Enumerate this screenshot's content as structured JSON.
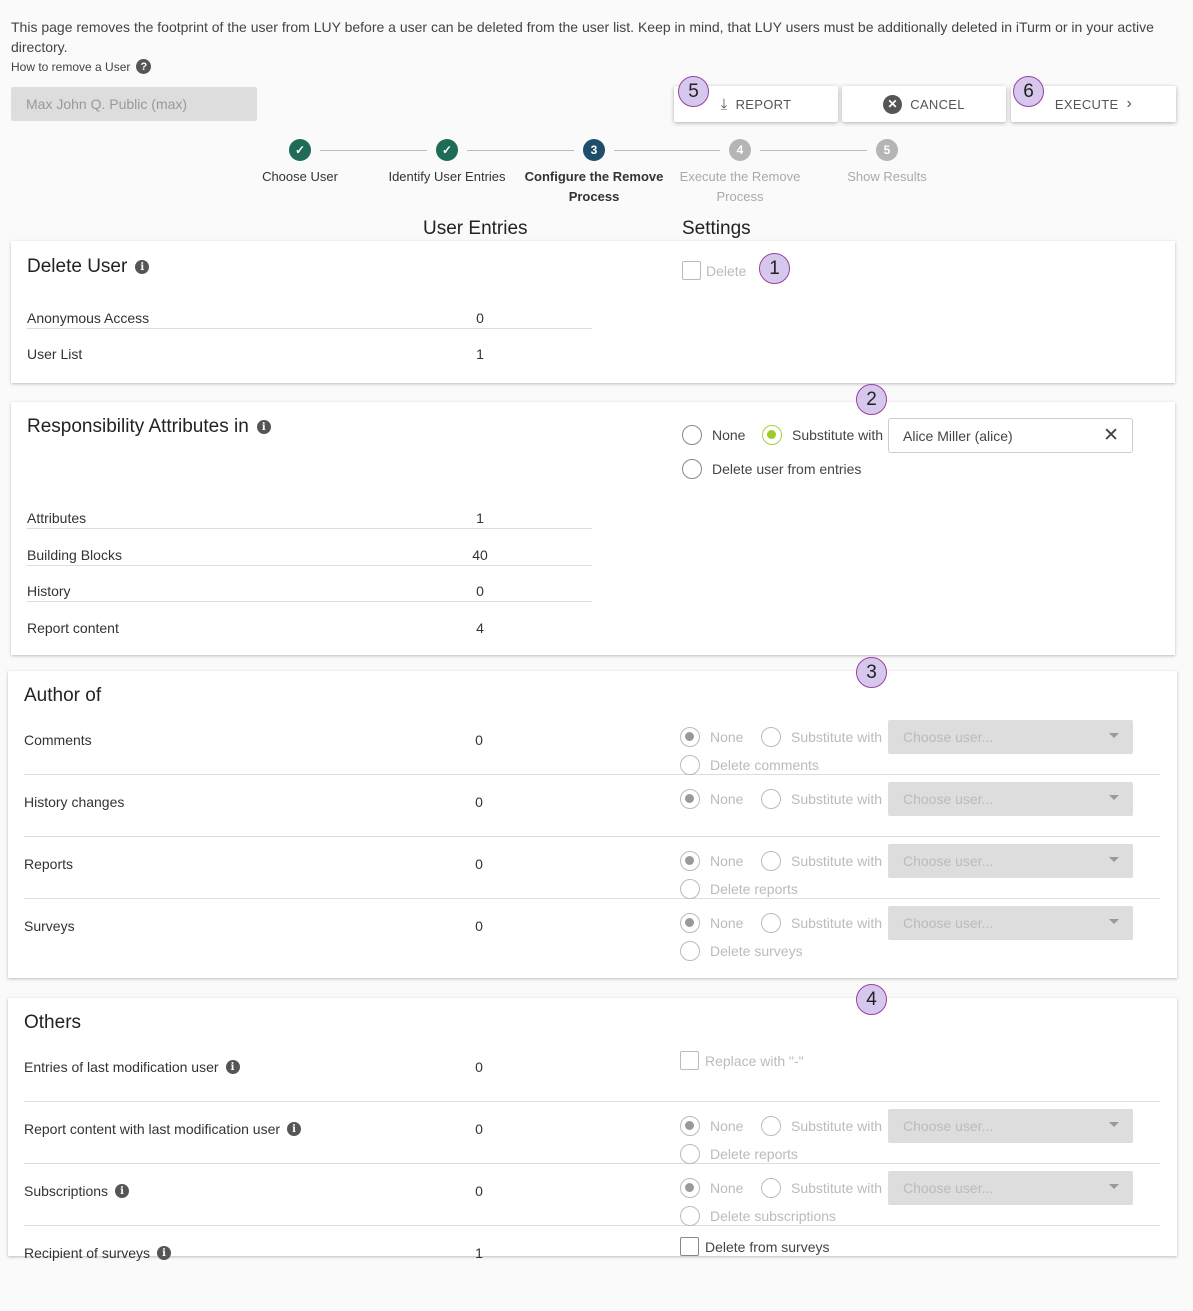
{
  "intro": {
    "text": "This page removes the footprint of the user from LUY before a user can be deleted from the user list. Keep in mind, that LUY users must be additionally deleted in iTurm or in your active directory.",
    "howto": "How to remove a User",
    "howto_icon": "help-circle-icon"
  },
  "selected_user": "Max John Q. Public (max)",
  "toolbar": {
    "report": "REPORT",
    "cancel": "CANCEL",
    "execute": "EXECUTE"
  },
  "stepper": [
    {
      "num": "✓",
      "label": "Choose User",
      "state": "done"
    },
    {
      "num": "✓",
      "label": "Identify User Entries",
      "state": "done"
    },
    {
      "num": "3",
      "label": "Configure the Remove Process",
      "state": "active"
    },
    {
      "num": "4",
      "label": "Execute the Remove Process",
      "state": "pending"
    },
    {
      "num": "5",
      "label": "Show Results",
      "state": "pending"
    }
  ],
  "columns": {
    "entries": "User Entries",
    "settings": "Settings"
  },
  "badges": [
    "1",
    "2",
    "3",
    "4",
    "5",
    "6"
  ],
  "delete_user": {
    "title": "Delete User",
    "checkbox": "Delete",
    "rows": [
      {
        "label": "Anonymous Access",
        "value": "0"
      },
      {
        "label": "User List",
        "value": "1"
      }
    ]
  },
  "responsibility": {
    "title": "Responsibility Attributes in",
    "none": "None",
    "substitute": "Substitute with",
    "substitute_value": "Alice Miller (alice)",
    "delete": "Delete user from entries",
    "selected": "substitute",
    "rows": [
      {
        "label": "Attributes",
        "value": "1"
      },
      {
        "label": "Building Blocks",
        "value": "40"
      },
      {
        "label": "History",
        "value": "0"
      },
      {
        "label": "Report content",
        "value": "4"
      }
    ]
  },
  "author": {
    "title": "Author of",
    "rows": [
      {
        "label": "Comments",
        "value": "0",
        "none": "None",
        "substitute": "Substitute with",
        "placeholder": "Choose user...",
        "delete": "Delete comments"
      },
      {
        "label": "History changes",
        "value": "0",
        "none": "None",
        "substitute": "Substitute with",
        "placeholder": "Choose user..."
      },
      {
        "label": "Reports",
        "value": "0",
        "none": "None",
        "substitute": "Substitute with",
        "placeholder": "Choose user...",
        "delete": "Delete reports"
      },
      {
        "label": "Surveys",
        "value": "0",
        "none": "None",
        "substitute": "Substitute with",
        "placeholder": "Choose user...",
        "delete": "Delete surveys"
      }
    ]
  },
  "others": {
    "title": "Others",
    "rows": [
      {
        "label": "Entries of last modification user",
        "info": true,
        "value": "0",
        "checkbox": "Replace with \"-\"",
        "checkbox_disabled": true
      },
      {
        "label": "Report content with last modification user",
        "info": true,
        "value": "0",
        "none": "None",
        "substitute": "Substitute with",
        "placeholder": "Choose user...",
        "delete": "Delete reports"
      },
      {
        "label": "Subscriptions",
        "info": true,
        "value": "0",
        "none": "None",
        "substitute": "Substitute with",
        "placeholder": "Choose user...",
        "delete": "Delete subscriptions"
      },
      {
        "label": "Recipient of surveys",
        "info": true,
        "value": "1",
        "checkbox": "Delete from surveys",
        "checkbox_disabled": false
      }
    ]
  },
  "colors": {
    "done": "#1e6b57",
    "active": "#1d4f6b",
    "pending": "#b5b5b5",
    "badge_fill": "#d6c8ec",
    "badge_border": "#9b3ea3",
    "radio_selected": "#9ccc2a"
  }
}
